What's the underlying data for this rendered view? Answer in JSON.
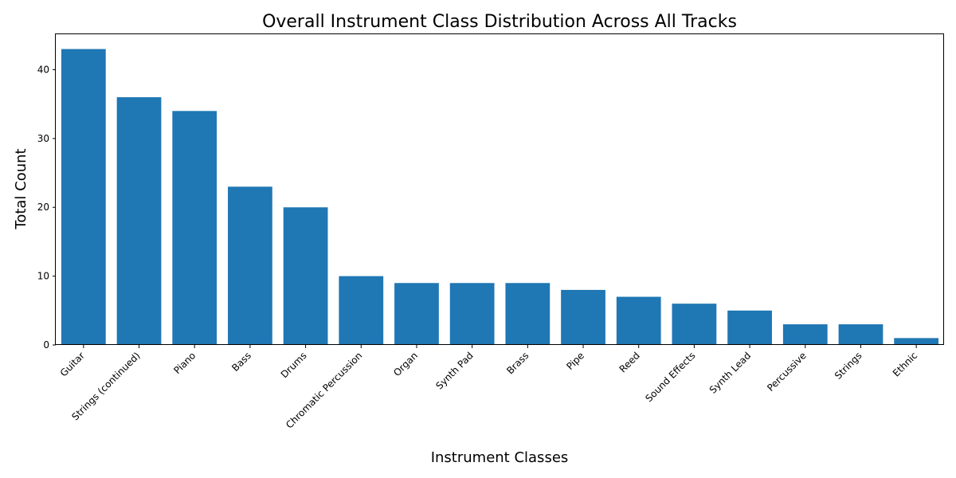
{
  "chart_data": {
    "type": "bar",
    "title": "Overall Instrument Class Distribution Across All Tracks",
    "xlabel": "Instrument Classes",
    "ylabel": "Total Count",
    "categories": [
      "Guitar",
      "Strings (continued)",
      "Piano",
      "Bass",
      "Drums",
      "Chromatic Percussion",
      "Organ",
      "Synth Pad",
      "Brass",
      "Pipe",
      "Reed",
      "Sound Effects",
      "Synth Lead",
      "Percussive",
      "Strings",
      "Ethnic"
    ],
    "values": [
      43,
      36,
      34,
      23,
      20,
      10,
      9,
      9,
      9,
      8,
      7,
      6,
      5,
      3,
      3,
      1
    ],
    "ylim": [
      0,
      45.15
    ],
    "yticks": [
      0,
      10,
      20,
      30,
      40
    ],
    "bar_color": "#1f77b4",
    "grid": false,
    "legend": "none"
  }
}
